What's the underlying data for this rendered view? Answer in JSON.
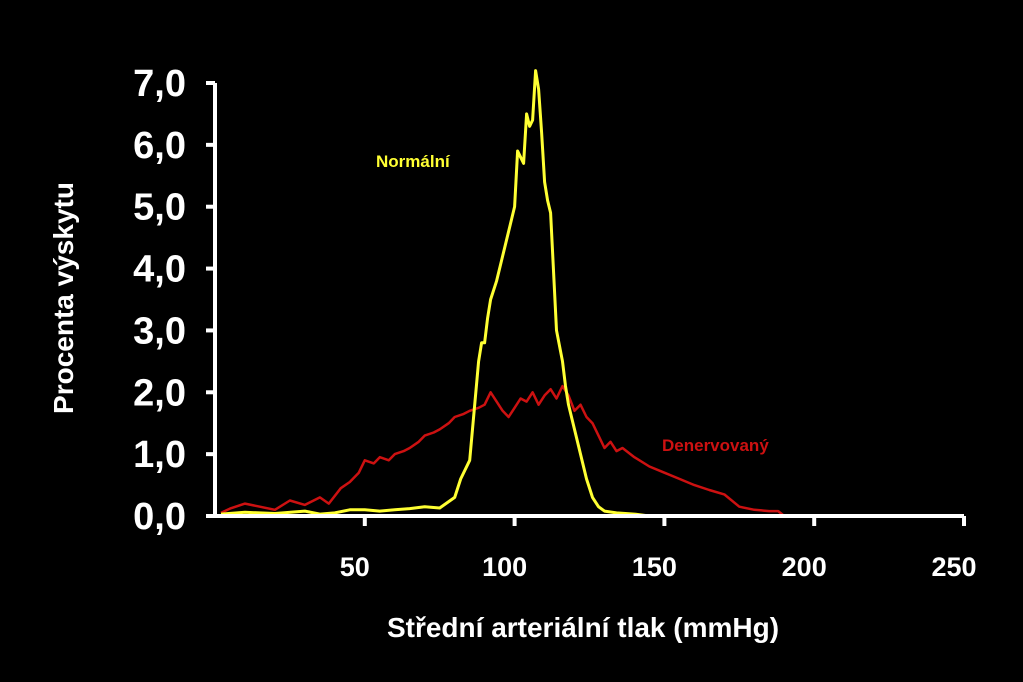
{
  "chart_data": {
    "type": "line",
    "xlabel": "Střední arteriální tlak (mmHg)",
    "ylabel": "Procenta výskytu",
    "xlim": [
      0,
      250
    ],
    "ylim": [
      0,
      7
    ],
    "grid": false,
    "y_ticks": [
      {
        "value": 0,
        "label": "0,0"
      },
      {
        "value": 1,
        "label": "1,0"
      },
      {
        "value": 2,
        "label": "2,0"
      },
      {
        "value": 3,
        "label": "3,0"
      },
      {
        "value": 4,
        "label": "4,0"
      },
      {
        "value": 5,
        "label": "5,0"
      },
      {
        "value": 6,
        "label": "6,0"
      },
      {
        "value": 7,
        "label": "7,0"
      }
    ],
    "x_ticks": [
      {
        "value": 50,
        "label": "50"
      },
      {
        "value": 100,
        "label": "100"
      },
      {
        "value": 150,
        "label": "150"
      },
      {
        "value": 200,
        "label": "200"
      },
      {
        "value": 250,
        "label": "250"
      }
    ],
    "series": [
      {
        "name": "Normální",
        "color": "#ffff33",
        "x": [
          2,
          10,
          20,
          30,
          35,
          40,
          45,
          50,
          55,
          60,
          65,
          70,
          75,
          80,
          82,
          85,
          88,
          89,
          90,
          91,
          92,
          94,
          96,
          98,
          100,
          101,
          102,
          103,
          104,
          105,
          106,
          107,
          108,
          109,
          110,
          111,
          112,
          114,
          116,
          117,
          118,
          120,
          122,
          124,
          126,
          128,
          130,
          134,
          140,
          145
        ],
        "y": [
          0.03,
          0.06,
          0.04,
          0.08,
          0.03,
          0.05,
          0.1,
          0.1,
          0.08,
          0.1,
          0.12,
          0.15,
          0.13,
          0.3,
          0.6,
          0.9,
          2.5,
          2.8,
          2.8,
          3.2,
          3.5,
          3.8,
          4.2,
          4.6,
          5.0,
          5.9,
          5.8,
          5.7,
          6.5,
          6.3,
          6.4,
          7.2,
          6.9,
          6.2,
          5.4,
          5.1,
          4.9,
          3.0,
          2.5,
          2.1,
          1.8,
          1.4,
          1.0,
          0.6,
          0.3,
          0.15,
          0.08,
          0.05,
          0.03,
          0.0
        ]
      },
      {
        "name": "Denervovaný",
        "color": "#cc1111",
        "x": [
          2,
          5,
          10,
          15,
          20,
          25,
          30,
          35,
          38,
          42,
          45,
          48,
          50,
          53,
          55,
          58,
          60,
          63,
          65,
          68,
          70,
          73,
          75,
          78,
          80,
          83,
          85,
          88,
          90,
          92,
          94,
          96,
          98,
          100,
          102,
          104,
          106,
          108,
          110,
          112,
          114,
          116,
          118,
          120,
          122,
          124,
          126,
          128,
          130,
          132,
          134,
          136,
          140,
          145,
          150,
          155,
          160,
          165,
          170,
          175,
          180,
          185,
          188,
          190
        ],
        "y": [
          0.05,
          0.12,
          0.2,
          0.15,
          0.1,
          0.25,
          0.18,
          0.3,
          0.2,
          0.45,
          0.55,
          0.7,
          0.9,
          0.85,
          0.95,
          0.9,
          1.0,
          1.05,
          1.1,
          1.2,
          1.3,
          1.35,
          1.4,
          1.5,
          1.6,
          1.65,
          1.7,
          1.75,
          1.8,
          2.0,
          1.85,
          1.7,
          1.6,
          1.75,
          1.9,
          1.85,
          2.0,
          1.8,
          1.95,
          2.05,
          1.9,
          2.1,
          1.95,
          1.7,
          1.8,
          1.6,
          1.5,
          1.3,
          1.1,
          1.2,
          1.05,
          1.1,
          0.95,
          0.8,
          0.7,
          0.6,
          0.5,
          0.42,
          0.35,
          0.15,
          0.1,
          0.08,
          0.08,
          0.0
        ]
      }
    ]
  }
}
